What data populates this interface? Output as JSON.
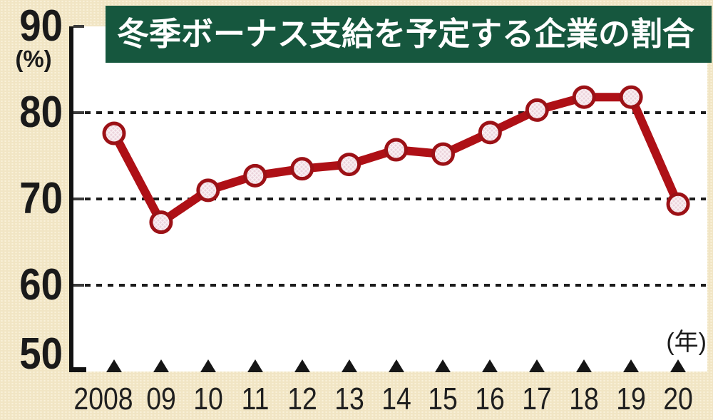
{
  "title": "冬季ボーナス支給を予定する企業の割合",
  "y_axis": {
    "unit_label": "(%)",
    "tick_labels": [
      "90",
      "80",
      "70",
      "60",
      "50"
    ]
  },
  "x_axis": {
    "unit_label": "(年)",
    "tick_labels": [
      "2008",
      "09",
      "10",
      "11",
      "12",
      "13",
      "14",
      "15",
      "16",
      "17",
      "18",
      "19",
      "20"
    ]
  },
  "chart_data": {
    "type": "line",
    "title": "冬季ボーナス支給を予定する企業の割合",
    "categories": [
      "2008",
      "09",
      "10",
      "11",
      "12",
      "13",
      "14",
      "15",
      "16",
      "17",
      "18",
      "19",
      "20"
    ],
    "values": [
      77.6,
      67.3,
      71.0,
      72.7,
      73.5,
      74.0,
      75.7,
      75.2,
      77.7,
      80.3,
      81.8,
      81.8,
      69.4
    ],
    "ylabel": "(%)",
    "xlabel": "(年)",
    "ylim": [
      50,
      90
    ],
    "y_ticks": [
      90,
      80,
      70,
      60,
      50
    ],
    "y_gridlines": [
      80,
      70,
      60
    ],
    "grid_style": "dotted-horizontal",
    "legend": "none",
    "marker": "circle",
    "x_marker": "triangle-up"
  },
  "colors": {
    "background": "#f1e5c4",
    "plot_background": "#ffffff",
    "title_bar_bg": "#16573e",
    "title_text": "#ffffff",
    "line": "#ae1016",
    "marker_fill": "#ecd4dc",
    "marker_border": "#9c1116",
    "axis": "#111111",
    "gridline": "#1c1c1c",
    "label_text": "#1a1a1a"
  }
}
